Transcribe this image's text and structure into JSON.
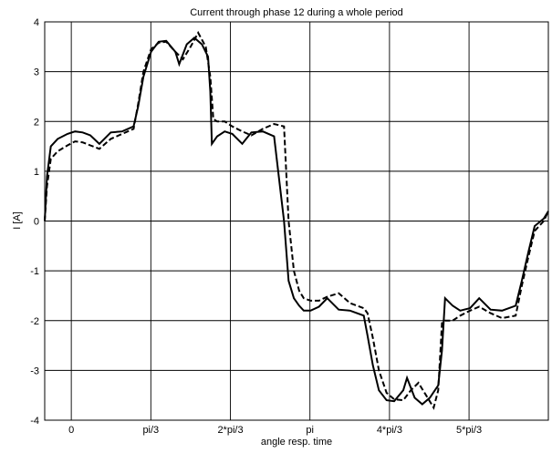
{
  "chart_data": {
    "type": "line",
    "title": "Current through phase 12 during a whole period",
    "xlabel": "angle resp. time",
    "ylabel": "I [A]",
    "xlim": [
      -0.35,
      6.28
    ],
    "ylim": [
      -4,
      4
    ],
    "grid": true,
    "x_ticks": [
      {
        "value": 0,
        "label": "0"
      },
      {
        "value": 1.0472,
        "label": "pi/3"
      },
      {
        "value": 2.0944,
        "label": "2*pi/3"
      },
      {
        "value": 3.1416,
        "label": "pi"
      },
      {
        "value": 4.1888,
        "label": "4*pi/3"
      },
      {
        "value": 5.236,
        "label": "5*pi/3"
      }
    ],
    "y_ticks": [
      {
        "value": -4,
        "label": "-4"
      },
      {
        "value": -3,
        "label": "-3"
      },
      {
        "value": -2,
        "label": "-2"
      },
      {
        "value": -1,
        "label": "-1"
      },
      {
        "value": 0,
        "label": "0"
      },
      {
        "value": 1,
        "label": "1"
      },
      {
        "value": 2,
        "label": "2"
      },
      {
        "value": 3,
        "label": "3"
      },
      {
        "value": 4,
        "label": "4"
      }
    ],
    "series": [
      {
        "style": "solid",
        "x": [
          -0.35,
          -0.32,
          -0.27,
          -0.18,
          -0.05,
          0.05,
          0.15,
          0.25,
          0.37,
          0.52,
          0.67,
          0.82,
          0.88,
          0.95,
          1.05,
          1.15,
          1.25,
          1.37,
          1.42,
          1.52,
          1.62,
          1.72,
          1.8,
          1.83,
          1.85,
          1.92,
          2.02,
          2.12,
          2.25,
          2.37,
          2.52,
          2.67,
          2.8,
          2.86,
          2.93,
          3.0,
          3.06,
          3.15,
          3.26,
          3.37,
          3.52,
          3.67,
          3.85,
          3.9,
          3.97,
          4.05,
          4.15,
          4.25,
          4.37,
          4.42,
          4.52,
          4.62,
          4.72,
          4.83,
          4.88,
          4.92,
          5.02,
          5.12,
          5.25,
          5.37,
          5.52,
          5.67,
          5.85,
          5.93,
          6.02,
          6.1,
          6.22,
          6.28
        ],
        "y": [
          0.0,
          0.9,
          1.5,
          1.65,
          1.75,
          1.8,
          1.78,
          1.72,
          1.55,
          1.78,
          1.8,
          1.9,
          2.3,
          2.9,
          3.4,
          3.6,
          3.62,
          3.4,
          3.15,
          3.55,
          3.68,
          3.55,
          3.3,
          2.6,
          1.55,
          1.7,
          1.8,
          1.75,
          1.55,
          1.78,
          1.8,
          1.7,
          0.0,
          -1.2,
          -1.55,
          -1.7,
          -1.8,
          -1.8,
          -1.72,
          -1.55,
          -1.78,
          -1.8,
          -1.9,
          -2.3,
          -2.9,
          -3.4,
          -3.6,
          -3.62,
          -3.4,
          -3.15,
          -3.55,
          -3.68,
          -3.55,
          -3.3,
          -2.6,
          -1.55,
          -1.7,
          -1.8,
          -1.75,
          -1.55,
          -1.78,
          -1.8,
          -1.7,
          -1.2,
          -0.6,
          -0.1,
          0.05,
          0.2
        ]
      },
      {
        "style": "dashed",
        "x": [
          -0.35,
          -0.32,
          -0.27,
          -0.18,
          -0.05,
          0.05,
          0.15,
          0.25,
          0.37,
          0.52,
          0.67,
          0.82,
          0.88,
          0.95,
          1.05,
          1.15,
          1.25,
          1.37,
          1.47,
          1.57,
          1.67,
          1.77,
          1.83,
          1.87,
          1.92,
          2.02,
          2.12,
          2.25,
          2.37,
          2.52,
          2.67,
          2.8,
          2.86,
          2.93,
          3.0,
          3.06,
          3.15,
          3.26,
          3.37,
          3.52,
          3.67,
          3.85,
          3.9,
          3.97,
          4.05,
          4.15,
          4.25,
          4.37,
          4.47,
          4.57,
          4.67,
          4.77,
          4.83,
          4.88,
          4.92,
          5.02,
          5.12,
          5.25,
          5.37,
          5.52,
          5.67,
          5.85,
          5.93,
          6.02,
          6.1,
          6.22,
          6.28
        ],
        "y": [
          0.0,
          0.7,
          1.25,
          1.4,
          1.52,
          1.6,
          1.58,
          1.52,
          1.45,
          1.65,
          1.75,
          1.85,
          2.35,
          3.0,
          3.45,
          3.58,
          3.6,
          3.4,
          3.25,
          3.5,
          3.78,
          3.5,
          2.9,
          2.05,
          2.0,
          2.0,
          1.9,
          1.8,
          1.72,
          1.85,
          1.95,
          1.9,
          0.0,
          -1.0,
          -1.4,
          -1.55,
          -1.6,
          -1.6,
          -1.52,
          -1.45,
          -1.65,
          -1.75,
          -1.85,
          -2.35,
          -3.0,
          -3.45,
          -3.58,
          -3.6,
          -3.4,
          -3.25,
          -3.5,
          -3.75,
          -3.4,
          -2.05,
          -2.0,
          -2.0,
          -1.9,
          -1.8,
          -1.72,
          -1.85,
          -1.95,
          -1.9,
          -1.3,
          -0.7,
          -0.2,
          0.0,
          0.2
        ]
      }
    ]
  }
}
